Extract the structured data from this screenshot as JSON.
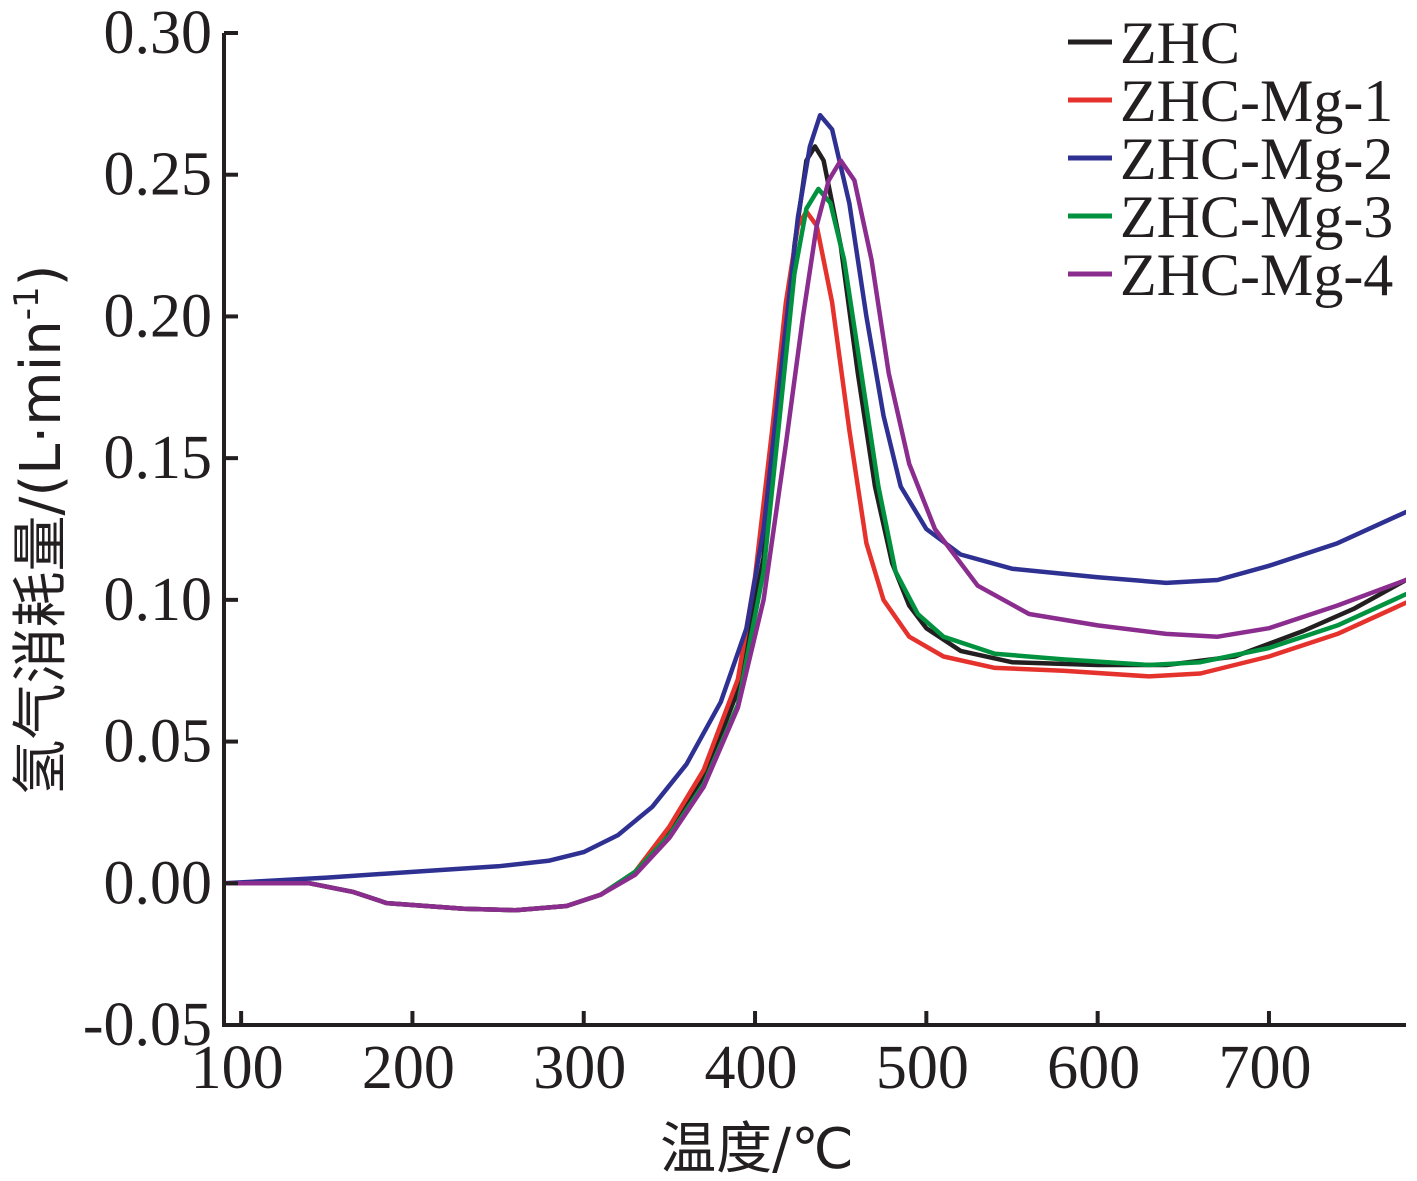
{
  "chart_data": {
    "type": "line",
    "xlabel": "温度/℃",
    "ylabel_main": "氢气消耗量/(L·min",
    "ylabel_sup": "-1",
    "ylabel_close": ")",
    "xlim": [
      90,
      780
    ],
    "ylim": [
      -0.05,
      0.3
    ],
    "xticks": [
      100,
      200,
      300,
      400,
      500,
      600,
      700
    ],
    "xtick_labels": [
      "100",
      "200",
      "300",
      "400",
      "500",
      "600",
      "700"
    ],
    "yticks": [
      -0.05,
      0.0,
      0.05,
      0.1,
      0.15,
      0.2,
      0.25,
      0.3
    ],
    "ytick_labels": [
      "-0.05",
      "0.00",
      "0.05",
      "0.10",
      "0.15",
      "0.20",
      "0.25",
      "0.30"
    ],
    "grid": false,
    "legend_position": "top-right",
    "series": [
      {
        "name": "ZHC",
        "color": "#231f20",
        "points": [
          [
            90,
            0.0
          ],
          [
            140,
            0.0
          ],
          [
            165,
            -0.003
          ],
          [
            185,
            -0.007
          ],
          [
            230,
            -0.009
          ],
          [
            260,
            -0.0095
          ],
          [
            290,
            -0.008
          ],
          [
            310,
            -0.004
          ],
          [
            330,
            0.004
          ],
          [
            350,
            0.018
          ],
          [
            370,
            0.037
          ],
          [
            390,
            0.068
          ],
          [
            405,
            0.115
          ],
          [
            415,
            0.175
          ],
          [
            423,
            0.225
          ],
          [
            430,
            0.255
          ],
          [
            435,
            0.26
          ],
          [
            440,
            0.255
          ],
          [
            450,
            0.225
          ],
          [
            460,
            0.18
          ],
          [
            470,
            0.14
          ],
          [
            480,
            0.113
          ],
          [
            490,
            0.098
          ],
          [
            500,
            0.09
          ],
          [
            520,
            0.082
          ],
          [
            550,
            0.078
          ],
          [
            600,
            0.077
          ],
          [
            640,
            0.077
          ],
          [
            680,
            0.08
          ],
          [
            720,
            0.089
          ],
          [
            750,
            0.097
          ],
          [
            780,
            0.107
          ]
        ]
      },
      {
        "name": "ZHC-Mg-1",
        "color": "#e5322d",
        "points": [
          [
            90,
            0.0
          ],
          [
            140,
            0.0
          ],
          [
            165,
            -0.003
          ],
          [
            185,
            -0.007
          ],
          [
            230,
            -0.009
          ],
          [
            260,
            -0.0095
          ],
          [
            290,
            -0.008
          ],
          [
            310,
            -0.004
          ],
          [
            330,
            0.004
          ],
          [
            350,
            0.02
          ],
          [
            370,
            0.04
          ],
          [
            390,
            0.072
          ],
          [
            400,
            0.108
          ],
          [
            410,
            0.16
          ],
          [
            418,
            0.205
          ],
          [
            425,
            0.232
          ],
          [
            430,
            0.237
          ],
          [
            436,
            0.232
          ],
          [
            445,
            0.205
          ],
          [
            455,
            0.16
          ],
          [
            465,
            0.12
          ],
          [
            475,
            0.1
          ],
          [
            490,
            0.087
          ],
          [
            510,
            0.08
          ],
          [
            540,
            0.076
          ],
          [
            580,
            0.075
          ],
          [
            630,
            0.073
          ],
          [
            660,
            0.074
          ],
          [
            700,
            0.08
          ],
          [
            740,
            0.088
          ],
          [
            780,
            0.099
          ]
        ]
      },
      {
        "name": "ZHC-Mg-2",
        "color": "#2e3192",
        "points": [
          [
            90,
            0.0
          ],
          [
            150,
            0.002
          ],
          [
            200,
            0.004
          ],
          [
            250,
            0.006
          ],
          [
            280,
            0.008
          ],
          [
            300,
            0.011
          ],
          [
            320,
            0.017
          ],
          [
            340,
            0.027
          ],
          [
            360,
            0.042
          ],
          [
            380,
            0.064
          ],
          [
            395,
            0.09
          ],
          [
            405,
            0.125
          ],
          [
            415,
            0.18
          ],
          [
            425,
            0.235
          ],
          [
            432,
            0.26
          ],
          [
            438,
            0.271
          ],
          [
            445,
            0.266
          ],
          [
            455,
            0.24
          ],
          [
            465,
            0.2
          ],
          [
            475,
            0.165
          ],
          [
            485,
            0.14
          ],
          [
            500,
            0.125
          ],
          [
            520,
            0.116
          ],
          [
            550,
            0.111
          ],
          [
            600,
            0.108
          ],
          [
            640,
            0.106
          ],
          [
            670,
            0.107
          ],
          [
            700,
            0.112
          ],
          [
            740,
            0.12
          ],
          [
            780,
            0.131
          ]
        ]
      },
      {
        "name": "ZHC-Mg-3",
        "color": "#00923f",
        "points": [
          [
            90,
            0.0
          ],
          [
            140,
            0.0
          ],
          [
            165,
            -0.003
          ],
          [
            185,
            -0.007
          ],
          [
            230,
            -0.009
          ],
          [
            260,
            -0.0095
          ],
          [
            290,
            -0.008
          ],
          [
            310,
            -0.004
          ],
          [
            330,
            0.004
          ],
          [
            350,
            0.017
          ],
          [
            370,
            0.035
          ],
          [
            390,
            0.063
          ],
          [
            405,
            0.11
          ],
          [
            415,
            0.168
          ],
          [
            423,
            0.215
          ],
          [
            430,
            0.238
          ],
          [
            437,
            0.245
          ],
          [
            444,
            0.24
          ],
          [
            452,
            0.22
          ],
          [
            462,
            0.18
          ],
          [
            472,
            0.14
          ],
          [
            482,
            0.11
          ],
          [
            495,
            0.095
          ],
          [
            510,
            0.087
          ],
          [
            540,
            0.081
          ],
          [
            580,
            0.079
          ],
          [
            630,
            0.077
          ],
          [
            660,
            0.078
          ],
          [
            700,
            0.083
          ],
          [
            740,
            0.091
          ],
          [
            780,
            0.102
          ]
        ]
      },
      {
        "name": "ZHC-Mg-4",
        "color": "#8b2d8e",
        "points": [
          [
            90,
            0.0
          ],
          [
            140,
            0.0
          ],
          [
            165,
            -0.003
          ],
          [
            185,
            -0.007
          ],
          [
            230,
            -0.009
          ],
          [
            260,
            -0.0095
          ],
          [
            290,
            -0.008
          ],
          [
            310,
            -0.004
          ],
          [
            330,
            0.003
          ],
          [
            350,
            0.016
          ],
          [
            370,
            0.034
          ],
          [
            390,
            0.062
          ],
          [
            405,
            0.1
          ],
          [
            418,
            0.155
          ],
          [
            428,
            0.2
          ],
          [
            436,
            0.232
          ],
          [
            443,
            0.248
          ],
          [
            450,
            0.255
          ],
          [
            458,
            0.248
          ],
          [
            468,
            0.22
          ],
          [
            478,
            0.18
          ],
          [
            490,
            0.148
          ],
          [
            505,
            0.125
          ],
          [
            530,
            0.105
          ],
          [
            560,
            0.095
          ],
          [
            600,
            0.091
          ],
          [
            640,
            0.088
          ],
          [
            670,
            0.087
          ],
          [
            700,
            0.09
          ],
          [
            740,
            0.098
          ],
          [
            780,
            0.107
          ]
        ]
      }
    ]
  }
}
